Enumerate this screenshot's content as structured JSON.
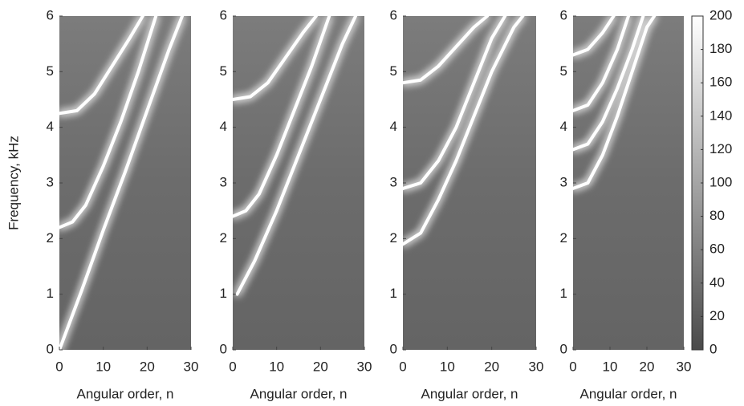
{
  "chart_data": [
    {
      "type": "heatmap",
      "xlabel": "Angular order, n",
      "ylabel": "Frequency, kHz",
      "xlim": [
        0,
        30
      ],
      "ylim": [
        0,
        6
      ],
      "xticks": [
        0,
        10,
        20,
        30
      ],
      "yticks": [
        0,
        1,
        2,
        3,
        4,
        5,
        6
      ],
      "series": [
        {
          "color": "#ffffff",
          "x": [
            0,
            4,
            8,
            12,
            16,
            19
          ],
          "values": [
            4.25,
            4.3,
            4.6,
            5.1,
            5.6,
            6
          ]
        },
        {
          "color": "#ffffff",
          "x": [
            0,
            3,
            6,
            10,
            14,
            18,
            22
          ],
          "values": [
            2.2,
            2.3,
            2.6,
            3.3,
            4.1,
            5,
            6
          ]
        },
        {
          "color": "#ffffff",
          "x": [
            0,
            5,
            10,
            15,
            20,
            25,
            28
          ],
          "values": [
            0,
            1.05,
            2.15,
            3.2,
            4.3,
            5.4,
            6
          ]
        }
      ]
    },
    {
      "type": "heatmap",
      "xlabel": "Angular order, n",
      "xlim": [
        0,
        30
      ],
      "ylim": [
        0,
        6
      ],
      "xticks": [
        0,
        10,
        20,
        30
      ],
      "yticks": [
        0,
        1,
        2,
        3,
        4,
        5,
        6
      ],
      "series": [
        {
          "color": "#ffffff",
          "x": [
            0,
            4,
            8,
            12,
            16,
            19
          ],
          "values": [
            4.5,
            4.55,
            4.8,
            5.25,
            5.7,
            6
          ]
        },
        {
          "color": "#ffffff",
          "x": [
            0,
            3,
            6,
            10,
            14,
            18,
            22
          ],
          "values": [
            2.4,
            2.5,
            2.8,
            3.5,
            4.3,
            5.1,
            6
          ]
        },
        {
          "color": "#ffffff",
          "x": [
            1,
            5,
            10,
            15,
            20,
            25,
            28
          ],
          "values": [
            1,
            1.6,
            2.5,
            3.5,
            4.5,
            5.5,
            6
          ]
        }
      ]
    },
    {
      "type": "heatmap",
      "xlabel": "Angular order, n",
      "xlim": [
        0,
        30
      ],
      "ylim": [
        0,
        6
      ],
      "xticks": [
        0,
        10,
        20,
        30
      ],
      "yticks": [
        0,
        1,
        2,
        3,
        4,
        5,
        6
      ],
      "series": [
        {
          "color": "#ffffff",
          "x": [
            0,
            4,
            8,
            12,
            16,
            19
          ],
          "values": [
            4.8,
            4.85,
            5.1,
            5.45,
            5.8,
            6
          ]
        },
        {
          "color": "#ffffff",
          "x": [
            0,
            4,
            8,
            12,
            16,
            20,
            23
          ],
          "values": [
            2.9,
            3,
            3.4,
            4,
            4.8,
            5.6,
            6
          ]
        },
        {
          "color": "#ffffff",
          "x": [
            0,
            4,
            8,
            12,
            16,
            20,
            25,
            27
          ],
          "values": [
            1.9,
            2.1,
            2.7,
            3.4,
            4.2,
            5,
            5.8,
            6
          ]
        }
      ]
    },
    {
      "type": "heatmap",
      "xlabel": "Angular order, n",
      "xlim": [
        0,
        30
      ],
      "ylim": [
        0,
        6
      ],
      "xticks": [
        0,
        10,
        20,
        30
      ],
      "yticks": [
        0,
        1,
        2,
        3,
        4,
        5,
        6
      ],
      "series": [
        {
          "color": "#ffffff",
          "x": [
            0,
            4,
            8,
            11
          ],
          "values": [
            5.3,
            5.4,
            5.7,
            6
          ]
        },
        {
          "color": "#ffffff",
          "x": [
            0,
            4,
            8,
            12,
            15
          ],
          "values": [
            4.3,
            4.4,
            4.8,
            5.4,
            6
          ]
        },
        {
          "color": "#ffffff",
          "x": [
            0,
            4,
            8,
            12,
            16,
            19
          ],
          "values": [
            3.6,
            3.7,
            4.1,
            4.7,
            5.4,
            6
          ]
        },
        {
          "color": "#ffffff",
          "x": [
            0,
            4,
            8,
            12,
            16,
            20,
            22
          ],
          "values": [
            2.9,
            3,
            3.5,
            4.2,
            5,
            5.8,
            6
          ]
        }
      ],
      "colorbar": {
        "lim": [
          0,
          200
        ],
        "ticks": [
          0,
          20,
          40,
          60,
          80,
          100,
          120,
          140,
          160,
          180,
          200
        ],
        "colors": [
          "#4a4a4a",
          "#ffffff"
        ]
      }
    }
  ]
}
